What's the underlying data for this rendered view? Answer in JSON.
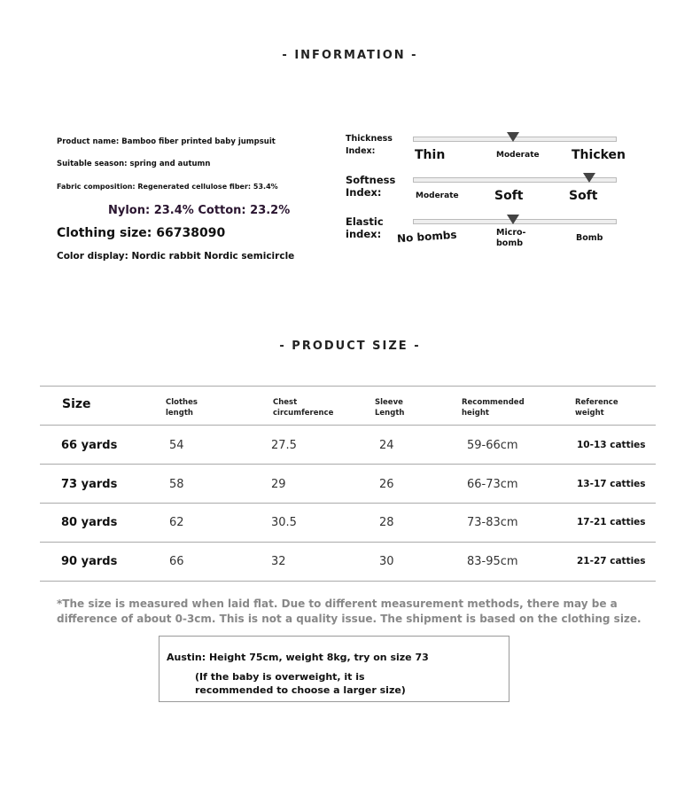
{
  "information": {
    "title": "- INFORMATION -",
    "product_name": "Product name: Bamboo fiber printed baby jumpsuit",
    "season": "Suitable season: spring and autumn",
    "fabric": "Fabric composition: Regenerated cellulose fiber: 53.4%",
    "fabric2": "Nylon: 23.4% Cotton: 23.2%",
    "clothing_size": "Clothing size: 66738090",
    "color_display": "Color display: Nordic rabbit Nordic semicircle",
    "indices": [
      {
        "label": "Thickness Index:",
        "value": 0.49,
        "scale": [
          "Thin",
          "Moderate",
          "Thicken"
        ]
      },
      {
        "label": "Softness Index:",
        "value": 0.87,
        "scale": [
          "Moderate",
          "Soft",
          "Soft"
        ]
      },
      {
        "label": "Elastic index:",
        "value": 0.49,
        "scale": [
          "No bombs",
          "Micro-bomb",
          "Bomb"
        ]
      }
    ]
  },
  "product_size": {
    "title": "- PRODUCT SIZE -",
    "headers": [
      "Size",
      "Clothes length",
      "Chest circumference",
      "Sleeve Length",
      "Recommended height",
      "Reference weight"
    ],
    "rows": [
      [
        "66 yards",
        "54",
        "27.5",
        "24",
        "59-66cm",
        "10-13 catties"
      ],
      [
        "73 yards",
        "58",
        "29",
        "26",
        "66-73cm",
        "13-17 catties"
      ],
      [
        "80 yards",
        "62",
        "30.5",
        "28",
        "73-83cm",
        "17-21 catties"
      ],
      [
        "90 yards",
        "66",
        "32",
        "30",
        "83-95cm",
        "21-27 catties"
      ]
    ],
    "note": "*The size is measured when laid flat. Due to different measurement methods, there may be a difference of about 0-3cm. This is not a quality issue. The shipment is based on the clothing size.",
    "example": "Austin: Height 75cm, weight 8kg, try on size 73",
    "example_note": "(If the baby is overweight, it is recommended to choose a larger size)"
  }
}
